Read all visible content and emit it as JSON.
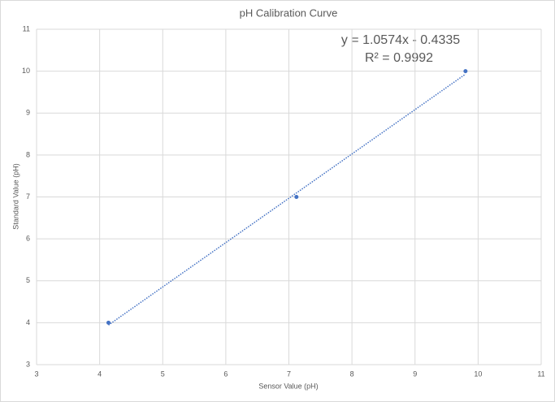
{
  "chart_data": {
    "type": "scatter",
    "title": "pH Calibration Curve",
    "x_label": "Sensor Value (pH)",
    "y_label": "Standard Value (pH)",
    "series": [
      {
        "name": "Calibration",
        "color": "#4472c4",
        "x": [
          4.14,
          7.12,
          9.8
        ],
        "values": [
          4,
          7,
          10
        ]
      }
    ],
    "trendline": {
      "equation": "y = 1.0574x - 0.4335",
      "r_squared": "R² = 0.9992",
      "slope": 1.0574,
      "intercept": -0.4335,
      "color": "#4472c4"
    },
    "xlim": [
      3,
      11
    ],
    "xticks": [
      3,
      4,
      5,
      6,
      7,
      8,
      9,
      10,
      11
    ],
    "ylim": [
      3,
      11
    ],
    "yticks": [
      3,
      4,
      5,
      6,
      7,
      8,
      9,
      10,
      11
    ],
    "grid": true
  }
}
